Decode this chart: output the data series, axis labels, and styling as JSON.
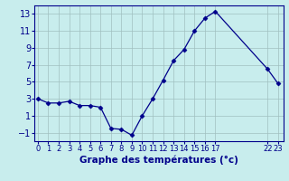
{
  "x": [
    0,
    1,
    2,
    3,
    4,
    5,
    6,
    7,
    8,
    9,
    10,
    11,
    12,
    13,
    14,
    15,
    16,
    17,
    22,
    23
  ],
  "y": [
    3.0,
    2.5,
    2.5,
    2.7,
    2.2,
    2.2,
    2.0,
    -0.5,
    -0.6,
    -1.3,
    1.0,
    3.0,
    5.2,
    7.5,
    8.8,
    11.0,
    12.5,
    13.3,
    6.5,
    4.8
  ],
  "line_color": "#00008B",
  "marker": "D",
  "marker_size": 2.5,
  "bg_color": "#c8eded",
  "grid_color": "#a0c0c0",
  "xlabel": "Graphe des températures (°c)",
  "ylim": [
    -2,
    14
  ],
  "yticks": [
    -1,
    1,
    3,
    5,
    7,
    9,
    11,
    13
  ],
  "xlim": [
    -0.3,
    23.5
  ],
  "xticks": [
    0,
    1,
    2,
    3,
    4,
    5,
    6,
    7,
    8,
    9,
    10,
    11,
    12,
    13,
    14,
    15,
    16,
    17,
    22,
    23
  ],
  "xtick_labels": [
    "0",
    "1",
    "2",
    "3",
    "4",
    "5",
    "6",
    "7",
    "8",
    "9",
    "10",
    "11",
    "12",
    "13",
    "14",
    "15",
    "16",
    "17",
    "22",
    "23"
  ],
  "axis_color": "#00008B",
  "bottom_bar_color": "#0000cc",
  "ylabel_fontsize": 6.5,
  "xlabel_fontsize": 7.5,
  "ytick_fontsize": 7,
  "xtick_fontsize": 6
}
